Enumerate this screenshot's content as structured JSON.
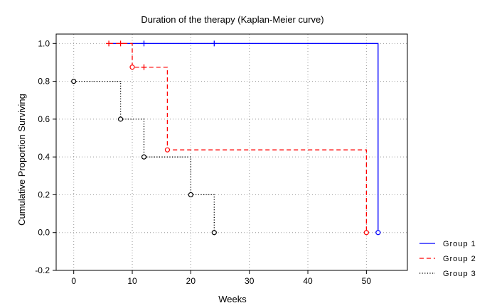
{
  "chart_data": {
    "type": "line",
    "subtype": "kaplan-meier step curve",
    "title": "Duration of the therapy (Kaplan-Meier curve)",
    "xlabel": "Weeks",
    "ylabel": "Cumulative Proportion Surviving",
    "xlim": [
      -3,
      57
    ],
    "ylim": [
      -0.2,
      1.05
    ],
    "x_ticks": [
      0,
      10,
      20,
      30,
      40,
      50
    ],
    "y_ticks": [
      -0.2,
      0.0,
      0.2,
      0.4,
      0.6,
      0.8,
      1.0
    ],
    "y_tick_labels": [
      "-0.2",
      "0.0",
      "0.2",
      "0.4",
      "0.6",
      "0.8",
      "1.0"
    ],
    "grid": true,
    "legend_position": "bottom-right, outside plot area",
    "background": "#ffffff",
    "series": [
      {
        "name": "Group 1",
        "color": "#0000ff",
        "line_style": "solid",
        "steps": [
          [
            6,
            1.0
          ],
          [
            52,
            1.0
          ],
          [
            52,
            0.0
          ]
        ],
        "censored": [
          [
            12,
            1.0
          ],
          [
            24,
            1.0
          ]
        ],
        "events": [
          [
            52,
            0.0
          ]
        ]
      },
      {
        "name": "Group 2",
        "color": "#ff0000",
        "line_style": "dashed",
        "steps": [
          [
            6,
            1.0
          ],
          [
            10,
            1.0
          ],
          [
            10,
            0.875
          ],
          [
            16,
            0.875
          ],
          [
            16,
            0.4375
          ],
          [
            50,
            0.4375
          ],
          [
            50,
            0.0
          ]
        ],
        "censored": [
          [
            6,
            1.0
          ],
          [
            8,
            1.0
          ],
          [
            12,
            0.875
          ]
        ],
        "events": [
          [
            10,
            0.875
          ],
          [
            16,
            0.4375
          ],
          [
            50,
            0.0
          ]
        ]
      },
      {
        "name": "Group 3",
        "color": "#000000",
        "line_style": "dotted",
        "steps": [
          [
            0,
            0.8
          ],
          [
            8,
            0.8
          ],
          [
            8,
            0.6
          ],
          [
            12,
            0.6
          ],
          [
            12,
            0.4
          ],
          [
            20,
            0.4
          ],
          [
            20,
            0.2
          ],
          [
            24,
            0.2
          ],
          [
            24,
            0.0
          ]
        ],
        "censored": [],
        "events": [
          [
            0,
            0.8
          ],
          [
            8,
            0.6
          ],
          [
            12,
            0.4
          ],
          [
            20,
            0.2
          ],
          [
            24,
            0.0
          ]
        ]
      }
    ]
  }
}
